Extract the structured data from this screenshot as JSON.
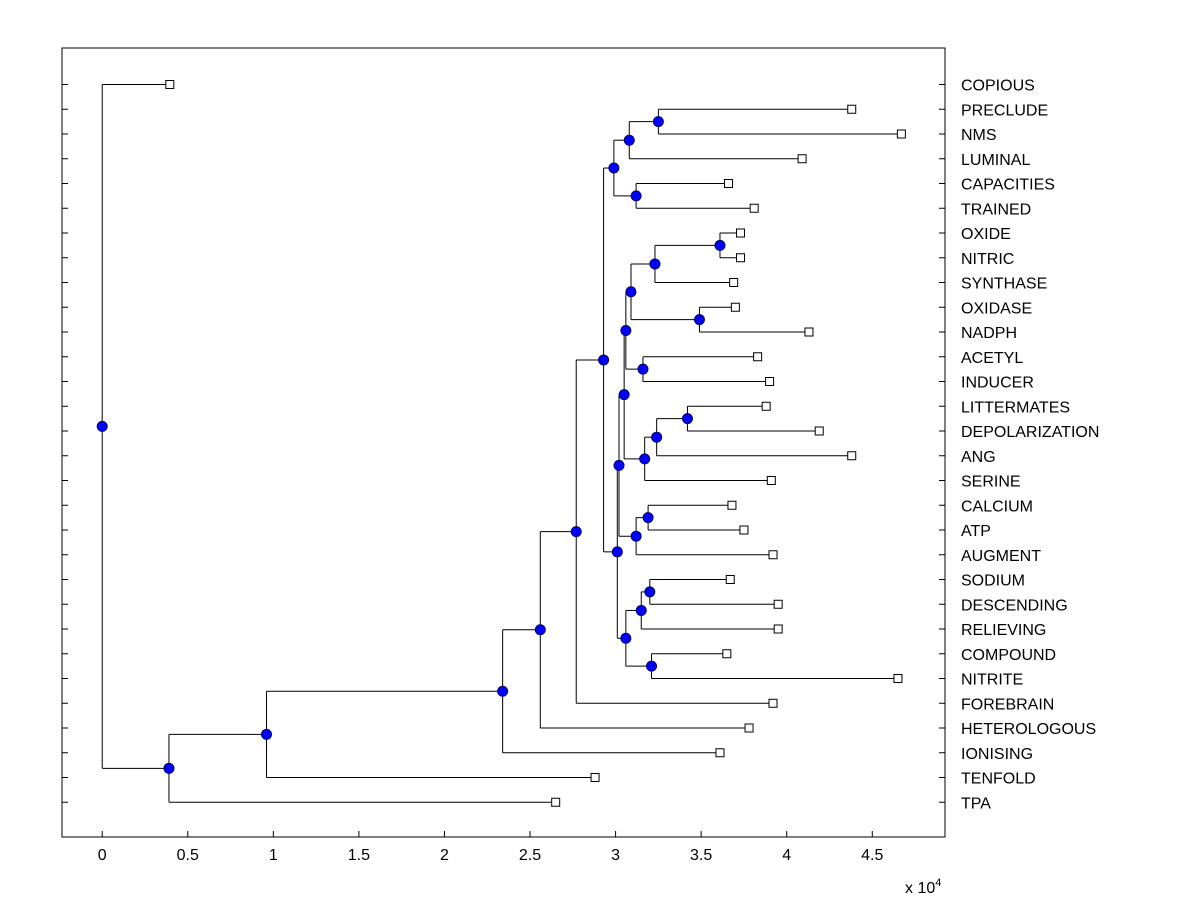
{
  "chart_data": {
    "type": "dendrogram",
    "orientation": "horizontal",
    "xlim": [
      -2350,
      49250
    ],
    "x_ticks": [
      0,
      5000,
      10000,
      15000,
      20000,
      25000,
      30000,
      35000,
      40000,
      45000
    ],
    "x_tick_labels": [
      "0",
      "0.5",
      "1",
      "1.5",
      "2",
      "2.5",
      "3",
      "3.5",
      "4",
      "4.5"
    ],
    "x_multiplier_label": "x 10",
    "x_multiplier_exponent": "4",
    "leaf_labels": [
      "COPIOUS",
      "PRECLUDE",
      "NMS",
      "LUMINAL",
      "CAPACITIES",
      "TRAINED",
      "OXIDE",
      "NITRIC",
      "SYNTHASE",
      "OXIDASE",
      "NADPH",
      "ACETYL",
      "INDUCER",
      "LITTERMATES",
      "DEPOLARIZATION",
      "ANG",
      "SERINE",
      "CALCIUM",
      "ATP",
      "AUGMENT",
      "SODIUM",
      "DESCENDING",
      "RELIEVING",
      "COMPOUND",
      "NITRITE",
      "FOREBRAIN",
      "HETEROLOGOUS",
      "IONISING",
      "TENFOLD",
      "TPA"
    ],
    "leaf_values": [
      3950,
      43800,
      46700,
      40900,
      36600,
      38100,
      37300,
      37300,
      36900,
      37000,
      41300,
      38300,
      39000,
      38800,
      41900,
      43800,
      39100,
      36800,
      37500,
      39200,
      36700,
      39500,
      39500,
      36500,
      46500,
      39200,
      37800,
      36100,
      28800,
      26500
    ],
    "nodes": [
      {
        "x": 32500,
        "children": [
          1,
          2
        ]
      },
      {
        "x": 30800,
        "children": [
          "n0",
          3
        ]
      },
      {
        "x": 31200,
        "children": [
          4,
          5
        ]
      },
      {
        "x": 29900,
        "children": [
          "n1",
          "n2"
        ]
      },
      {
        "x": 36100,
        "children": [
          6,
          7
        ]
      },
      {
        "x": 32300,
        "children": [
          "n4",
          8
        ]
      },
      {
        "x": 34900,
        "children": [
          9,
          10
        ]
      },
      {
        "x": 30900,
        "children": [
          "n5",
          "n6"
        ]
      },
      {
        "x": 31600,
        "children": [
          11,
          12
        ]
      },
      {
        "x": 30600,
        "children": [
          "n7",
          "n8"
        ]
      },
      {
        "x": 34200,
        "children": [
          13,
          14
        ]
      },
      {
        "x": 32400,
        "children": [
          "n10",
          15
        ]
      },
      {
        "x": 31700,
        "children": [
          "n11",
          16
        ]
      },
      {
        "x": 30500,
        "children": [
          "n9",
          "n12"
        ]
      },
      {
        "x": 31900,
        "children": [
          17,
          18
        ]
      },
      {
        "x": 31200,
        "children": [
          "n14",
          19
        ]
      },
      {
        "x": 30200,
        "children": [
          "n13",
          "n15"
        ]
      },
      {
        "x": 32000,
        "children": [
          20,
          21
        ]
      },
      {
        "x": 31500,
        "children": [
          "n17",
          22
        ]
      },
      {
        "x": 32100,
        "children": [
          23,
          24
        ]
      },
      {
        "x": 30600,
        "children": [
          "n18",
          "n19"
        ]
      },
      {
        "x": 30100,
        "children": [
          "n16",
          "n20"
        ]
      },
      {
        "x": 29300,
        "children": [
          "n3",
          "n21"
        ]
      },
      {
        "x": 27700,
        "children": [
          "n22",
          25
        ]
      },
      {
        "x": 25600,
        "children": [
          "n23",
          26
        ]
      },
      {
        "x": 23400,
        "children": [
          "n24",
          27
        ]
      },
      {
        "x": 9600,
        "children": [
          "n25",
          28
        ]
      },
      {
        "x": 3900,
        "children": [
          "n26",
          29
        ]
      },
      {
        "x": 0,
        "children": [
          0,
          "n27"
        ]
      }
    ],
    "colors": {
      "node_fill": "#0000ff",
      "node_stroke": "#000066",
      "line": "#000000",
      "leaf_fill": "#ffffff"
    }
  }
}
